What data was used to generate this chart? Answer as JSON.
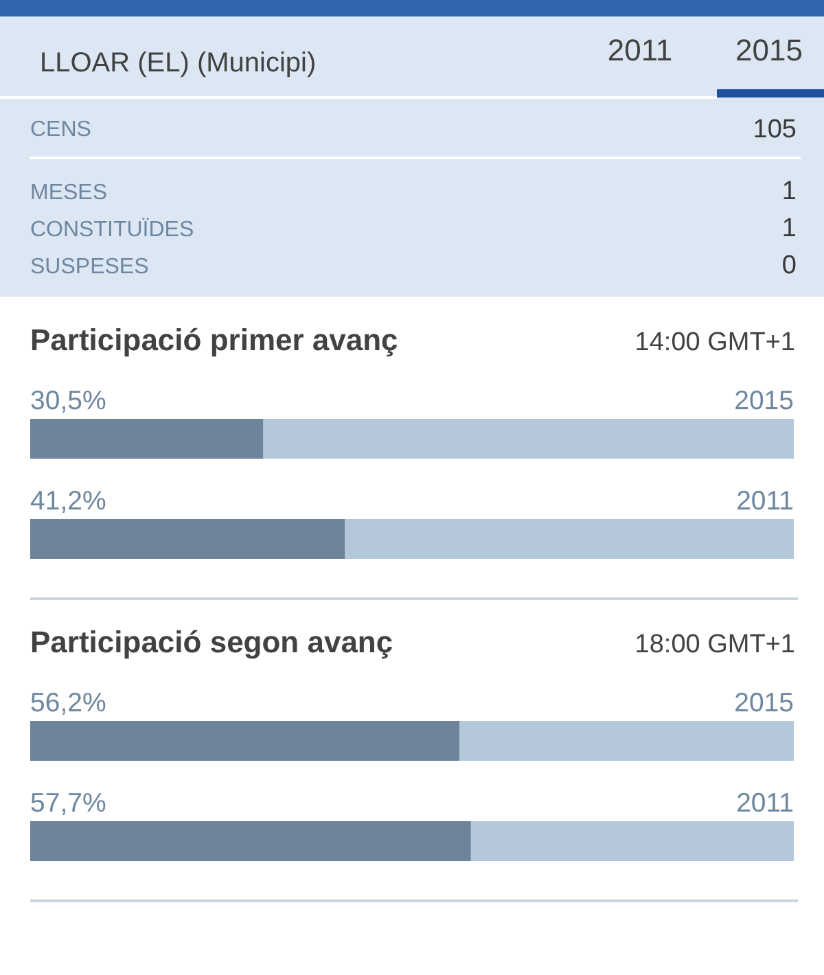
{
  "chart_data": [
    {
      "type": "other",
      "title": "LLOAR (EL) (Municipi)",
      "annotations": [
        "2011",
        "2015"
      ],
      "categories": [
        "CENS",
        "MESES",
        "CONSTITUÏDES",
        "SUSPESES"
      ],
      "values": [
        105,
        1,
        1,
        0
      ],
      "data_labels": true
    },
    {
      "type": "bar",
      "orientation": "horizontal",
      "title": "Participació primer avanç",
      "subtitle": "14:00 GMT+1",
      "categories": [
        "2015",
        "2011"
      ],
      "values": [
        30.5,
        41.2
      ],
      "value_labels": [
        "30,5%",
        "41,2%"
      ],
      "color": "#6e849b",
      "xlim": [
        0,
        100
      ],
      "tick_labels": "y"
    },
    {
      "type": "bar",
      "orientation": "horizontal",
      "title": "Participació segon avanç",
      "subtitle": "18:00 GMT+1",
      "categories": [
        "2015",
        "2011"
      ],
      "values": [
        56.2,
        57.7
      ],
      "value_labels": [
        "56,2%",
        "57,7%"
      ],
      "color": "#6e849b",
      "xlim": [
        0,
        100
      ],
      "tick_labels": "y"
    }
  ]
}
